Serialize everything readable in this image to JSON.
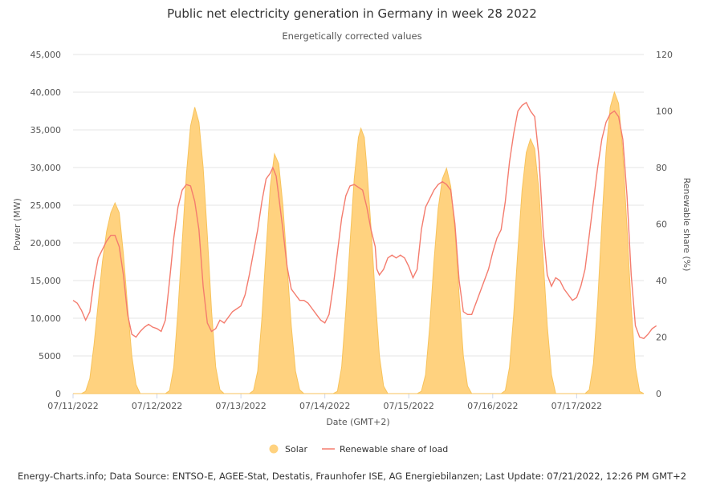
{
  "chart_data": {
    "type": "area+line",
    "title": "Public net electricity generation in Germany in week 28 2022",
    "subtitle": "Energetically corrected values",
    "xlabel": "Date (GMT+2)",
    "ylabel_left": "Power (MW)",
    "ylabel_right": "Renewable share (%)",
    "ylim_left": [
      0,
      45000
    ],
    "ylim_right": [
      0,
      120
    ],
    "xlim_days": [
      0,
      6.8
    ],
    "left_ticks": [
      "0",
      "5000",
      "10,000",
      "15,000",
      "20,000",
      "25,000",
      "30,000",
      "35,000",
      "40,000",
      "45,000"
    ],
    "right_ticks": [
      "0",
      "20",
      "40",
      "60",
      "80",
      "100",
      "120"
    ],
    "x_tick_labels": [
      "07/11/2022",
      "07/12/2022",
      "07/13/2022",
      "07/14/2022",
      "07/15/2022",
      "07/16/2022",
      "07/17/2022"
    ],
    "legend": [
      "Solar",
      "Renewable share of load"
    ],
    "colors": {
      "solar": "#ffd27f",
      "solar_stroke": "#f7c35c",
      "share": "#f47c6e"
    },
    "series": [
      {
        "name": "Solar",
        "axis": "left",
        "unit": "MW",
        "points": [
          [
            0.0,
            0
          ],
          [
            0.1,
            0
          ],
          [
            0.15,
            300
          ],
          [
            0.2,
            2000
          ],
          [
            0.25,
            6500
          ],
          [
            0.3,
            12000
          ],
          [
            0.35,
            17500
          ],
          [
            0.4,
            21500
          ],
          [
            0.45,
            24000
          ],
          [
            0.5,
            25300
          ],
          [
            0.55,
            24000
          ],
          [
            0.6,
            18500
          ],
          [
            0.65,
            11500
          ],
          [
            0.7,
            5000
          ],
          [
            0.75,
            1200
          ],
          [
            0.8,
            0
          ],
          [
            1.1,
            0
          ],
          [
            1.15,
            400
          ],
          [
            1.2,
            3500
          ],
          [
            1.25,
            11000
          ],
          [
            1.3,
            20000
          ],
          [
            1.35,
            29000
          ],
          [
            1.4,
            35500
          ],
          [
            1.45,
            38000
          ],
          [
            1.5,
            36000
          ],
          [
            1.55,
            30000
          ],
          [
            1.6,
            21000
          ],
          [
            1.65,
            11000
          ],
          [
            1.7,
            3500
          ],
          [
            1.75,
            500
          ],
          [
            1.8,
            0
          ],
          [
            2.1,
            0
          ],
          [
            2.15,
            400
          ],
          [
            2.2,
            3000
          ],
          [
            2.25,
            10000
          ],
          [
            2.3,
            19000
          ],
          [
            2.35,
            27500
          ],
          [
            2.4,
            31800
          ],
          [
            2.45,
            30500
          ],
          [
            2.5,
            25000
          ],
          [
            2.55,
            17000
          ],
          [
            2.6,
            9000
          ],
          [
            2.65,
            3000
          ],
          [
            2.7,
            500
          ],
          [
            2.75,
            0
          ],
          [
            3.1,
            0
          ],
          [
            3.15,
            300
          ],
          [
            3.2,
            3500
          ],
          [
            3.25,
            11000
          ],
          [
            3.3,
            20000
          ],
          [
            3.35,
            28500
          ],
          [
            3.4,
            34000
          ],
          [
            3.43,
            35200
          ],
          [
            3.47,
            34000
          ],
          [
            3.5,
            30000
          ],
          [
            3.55,
            22000
          ],
          [
            3.6,
            13000
          ],
          [
            3.65,
            5000
          ],
          [
            3.7,
            1000
          ],
          [
            3.75,
            0
          ],
          [
            4.1,
            0
          ],
          [
            4.15,
            300
          ],
          [
            4.2,
            2500
          ],
          [
            4.25,
            9000
          ],
          [
            4.3,
            17500
          ],
          [
            4.35,
            24500
          ],
          [
            4.4,
            28500
          ],
          [
            4.45,
            29900
          ],
          [
            4.5,
            27500
          ],
          [
            4.55,
            21500
          ],
          [
            4.6,
            13000
          ],
          [
            4.65,
            5000
          ],
          [
            4.7,
            1000
          ],
          [
            4.75,
            0
          ],
          [
            5.1,
            0
          ],
          [
            5.15,
            400
          ],
          [
            5.2,
            3500
          ],
          [
            5.25,
            10500
          ],
          [
            5.3,
            19000
          ],
          [
            5.35,
            27000
          ],
          [
            5.4,
            32000
          ],
          [
            5.45,
            33800
          ],
          [
            5.5,
            32500
          ],
          [
            5.55,
            27000
          ],
          [
            5.6,
            18000
          ],
          [
            5.65,
            9000
          ],
          [
            5.7,
            2500
          ],
          [
            5.75,
            0
          ],
          [
            6.1,
            0
          ],
          [
            6.15,
            500
          ],
          [
            6.2,
            4000
          ],
          [
            6.25,
            12000
          ],
          [
            6.3,
            22500
          ],
          [
            6.35,
            32000
          ],
          [
            6.4,
            38000
          ],
          [
            6.45,
            40000
          ],
          [
            6.5,
            38500
          ],
          [
            6.55,
            32000
          ],
          [
            6.6,
            22000
          ],
          [
            6.65,
            11500
          ],
          [
            6.7,
            3500
          ],
          [
            6.75,
            300
          ],
          [
            6.8,
            0
          ]
        ]
      },
      {
        "name": "Renewable share of load",
        "axis": "right",
        "unit": "%",
        "points": [
          [
            0.0,
            33
          ],
          [
            0.05,
            32
          ],
          [
            0.1,
            29.5
          ],
          [
            0.15,
            26
          ],
          [
            0.2,
            29
          ],
          [
            0.25,
            40
          ],
          [
            0.3,
            48
          ],
          [
            0.35,
            51
          ],
          [
            0.4,
            54
          ],
          [
            0.45,
            56
          ],
          [
            0.5,
            56
          ],
          [
            0.55,
            52
          ],
          [
            0.6,
            42
          ],
          [
            0.65,
            28
          ],
          [
            0.7,
            21
          ],
          [
            0.75,
            20
          ],
          [
            0.8,
            22
          ],
          [
            0.85,
            23.5
          ],
          [
            0.9,
            24.5
          ],
          [
            0.95,
            23.5
          ],
          [
            1.0,
            23
          ],
          [
            1.05,
            22
          ],
          [
            1.1,
            26
          ],
          [
            1.15,
            40
          ],
          [
            1.2,
            55
          ],
          [
            1.25,
            66
          ],
          [
            1.3,
            72
          ],
          [
            1.35,
            74
          ],
          [
            1.4,
            73.5
          ],
          [
            1.45,
            68
          ],
          [
            1.5,
            58
          ],
          [
            1.55,
            38
          ],
          [
            1.6,
            25
          ],
          [
            1.65,
            22
          ],
          [
            1.7,
            23
          ],
          [
            1.75,
            26
          ],
          [
            1.8,
            25
          ],
          [
            1.85,
            27
          ],
          [
            1.9,
            29
          ],
          [
            1.95,
            30
          ],
          [
            2.0,
            31
          ],
          [
            2.05,
            35
          ],
          [
            2.1,
            42
          ],
          [
            2.15,
            50
          ],
          [
            2.2,
            58
          ],
          [
            2.25,
            68
          ],
          [
            2.3,
            76
          ],
          [
            2.35,
            78
          ],
          [
            2.38,
            80
          ],
          [
            2.42,
            77
          ],
          [
            2.45,
            70
          ],
          [
            2.5,
            58
          ],
          [
            2.55,
            45
          ],
          [
            2.6,
            37
          ],
          [
            2.65,
            35
          ],
          [
            2.7,
            33
          ],
          [
            2.75,
            33
          ],
          [
            2.8,
            32
          ],
          [
            2.85,
            30
          ],
          [
            2.9,
            28
          ],
          [
            2.95,
            26
          ],
          [
            3.0,
            25
          ],
          [
            3.05,
            28
          ],
          [
            3.1,
            38
          ],
          [
            3.15,
            50
          ],
          [
            3.2,
            62
          ],
          [
            3.25,
            70
          ],
          [
            3.3,
            73.5
          ],
          [
            3.35,
            74
          ],
          [
            3.4,
            73
          ],
          [
            3.45,
            72
          ],
          [
            3.5,
            66
          ],
          [
            3.55,
            58
          ],
          [
            3.6,
            52
          ],
          [
            3.62,
            44
          ],
          [
            3.65,
            42
          ],
          [
            3.7,
            44
          ],
          [
            3.75,
            48
          ],
          [
            3.8,
            49
          ],
          [
            3.85,
            48
          ],
          [
            3.9,
            49
          ],
          [
            3.95,
            48
          ],
          [
            4.0,
            45
          ],
          [
            4.05,
            41
          ],
          [
            4.1,
            44
          ],
          [
            4.15,
            58
          ],
          [
            4.2,
            66
          ],
          [
            4.25,
            69
          ],
          [
            4.3,
            72
          ],
          [
            4.35,
            74
          ],
          [
            4.4,
            75
          ],
          [
            4.45,
            74
          ],
          [
            4.5,
            72
          ],
          [
            4.55,
            60
          ],
          [
            4.6,
            40
          ],
          [
            4.65,
            29
          ],
          [
            4.7,
            28
          ],
          [
            4.75,
            28
          ],
          [
            4.8,
            32
          ],
          [
            4.85,
            36
          ],
          [
            4.9,
            40
          ],
          [
            4.95,
            44
          ],
          [
            5.0,
            50
          ],
          [
            5.05,
            55
          ],
          [
            5.1,
            58
          ],
          [
            5.15,
            68
          ],
          [
            5.2,
            82
          ],
          [
            5.25,
            92
          ],
          [
            5.3,
            100
          ],
          [
            5.35,
            102
          ],
          [
            5.4,
            103
          ],
          [
            5.45,
            100
          ],
          [
            5.5,
            98
          ],
          [
            5.55,
            84
          ],
          [
            5.6,
            58
          ],
          [
            5.65,
            42
          ],
          [
            5.7,
            38
          ],
          [
            5.75,
            41
          ],
          [
            5.8,
            40
          ],
          [
            5.85,
            37
          ],
          [
            5.9,
            35
          ],
          [
            5.95,
            33
          ],
          [
            6.0,
            34
          ],
          [
            6.05,
            38
          ],
          [
            6.1,
            44
          ],
          [
            6.15,
            56
          ],
          [
            6.2,
            68
          ],
          [
            6.25,
            80
          ],
          [
            6.3,
            90
          ],
          [
            6.35,
            96
          ],
          [
            6.4,
            99
          ],
          [
            6.45,
            100
          ],
          [
            6.5,
            98
          ],
          [
            6.55,
            90
          ],
          [
            6.6,
            70
          ],
          [
            6.65,
            42
          ],
          [
            6.7,
            24
          ],
          [
            6.75,
            20
          ],
          [
            6.8,
            19.5
          ],
          [
            6.85,
            21
          ],
          [
            6.9,
            23
          ],
          [
            6.95,
            24
          ]
        ]
      }
    ]
  },
  "credits": "Energy-Charts.info; Data Source: ENTSO-E, AGEE-Stat, Destatis, Fraunhofer ISE, AG Energiebilanzen; Last Update: 07/21/2022, 12:26 PM GMT+2"
}
